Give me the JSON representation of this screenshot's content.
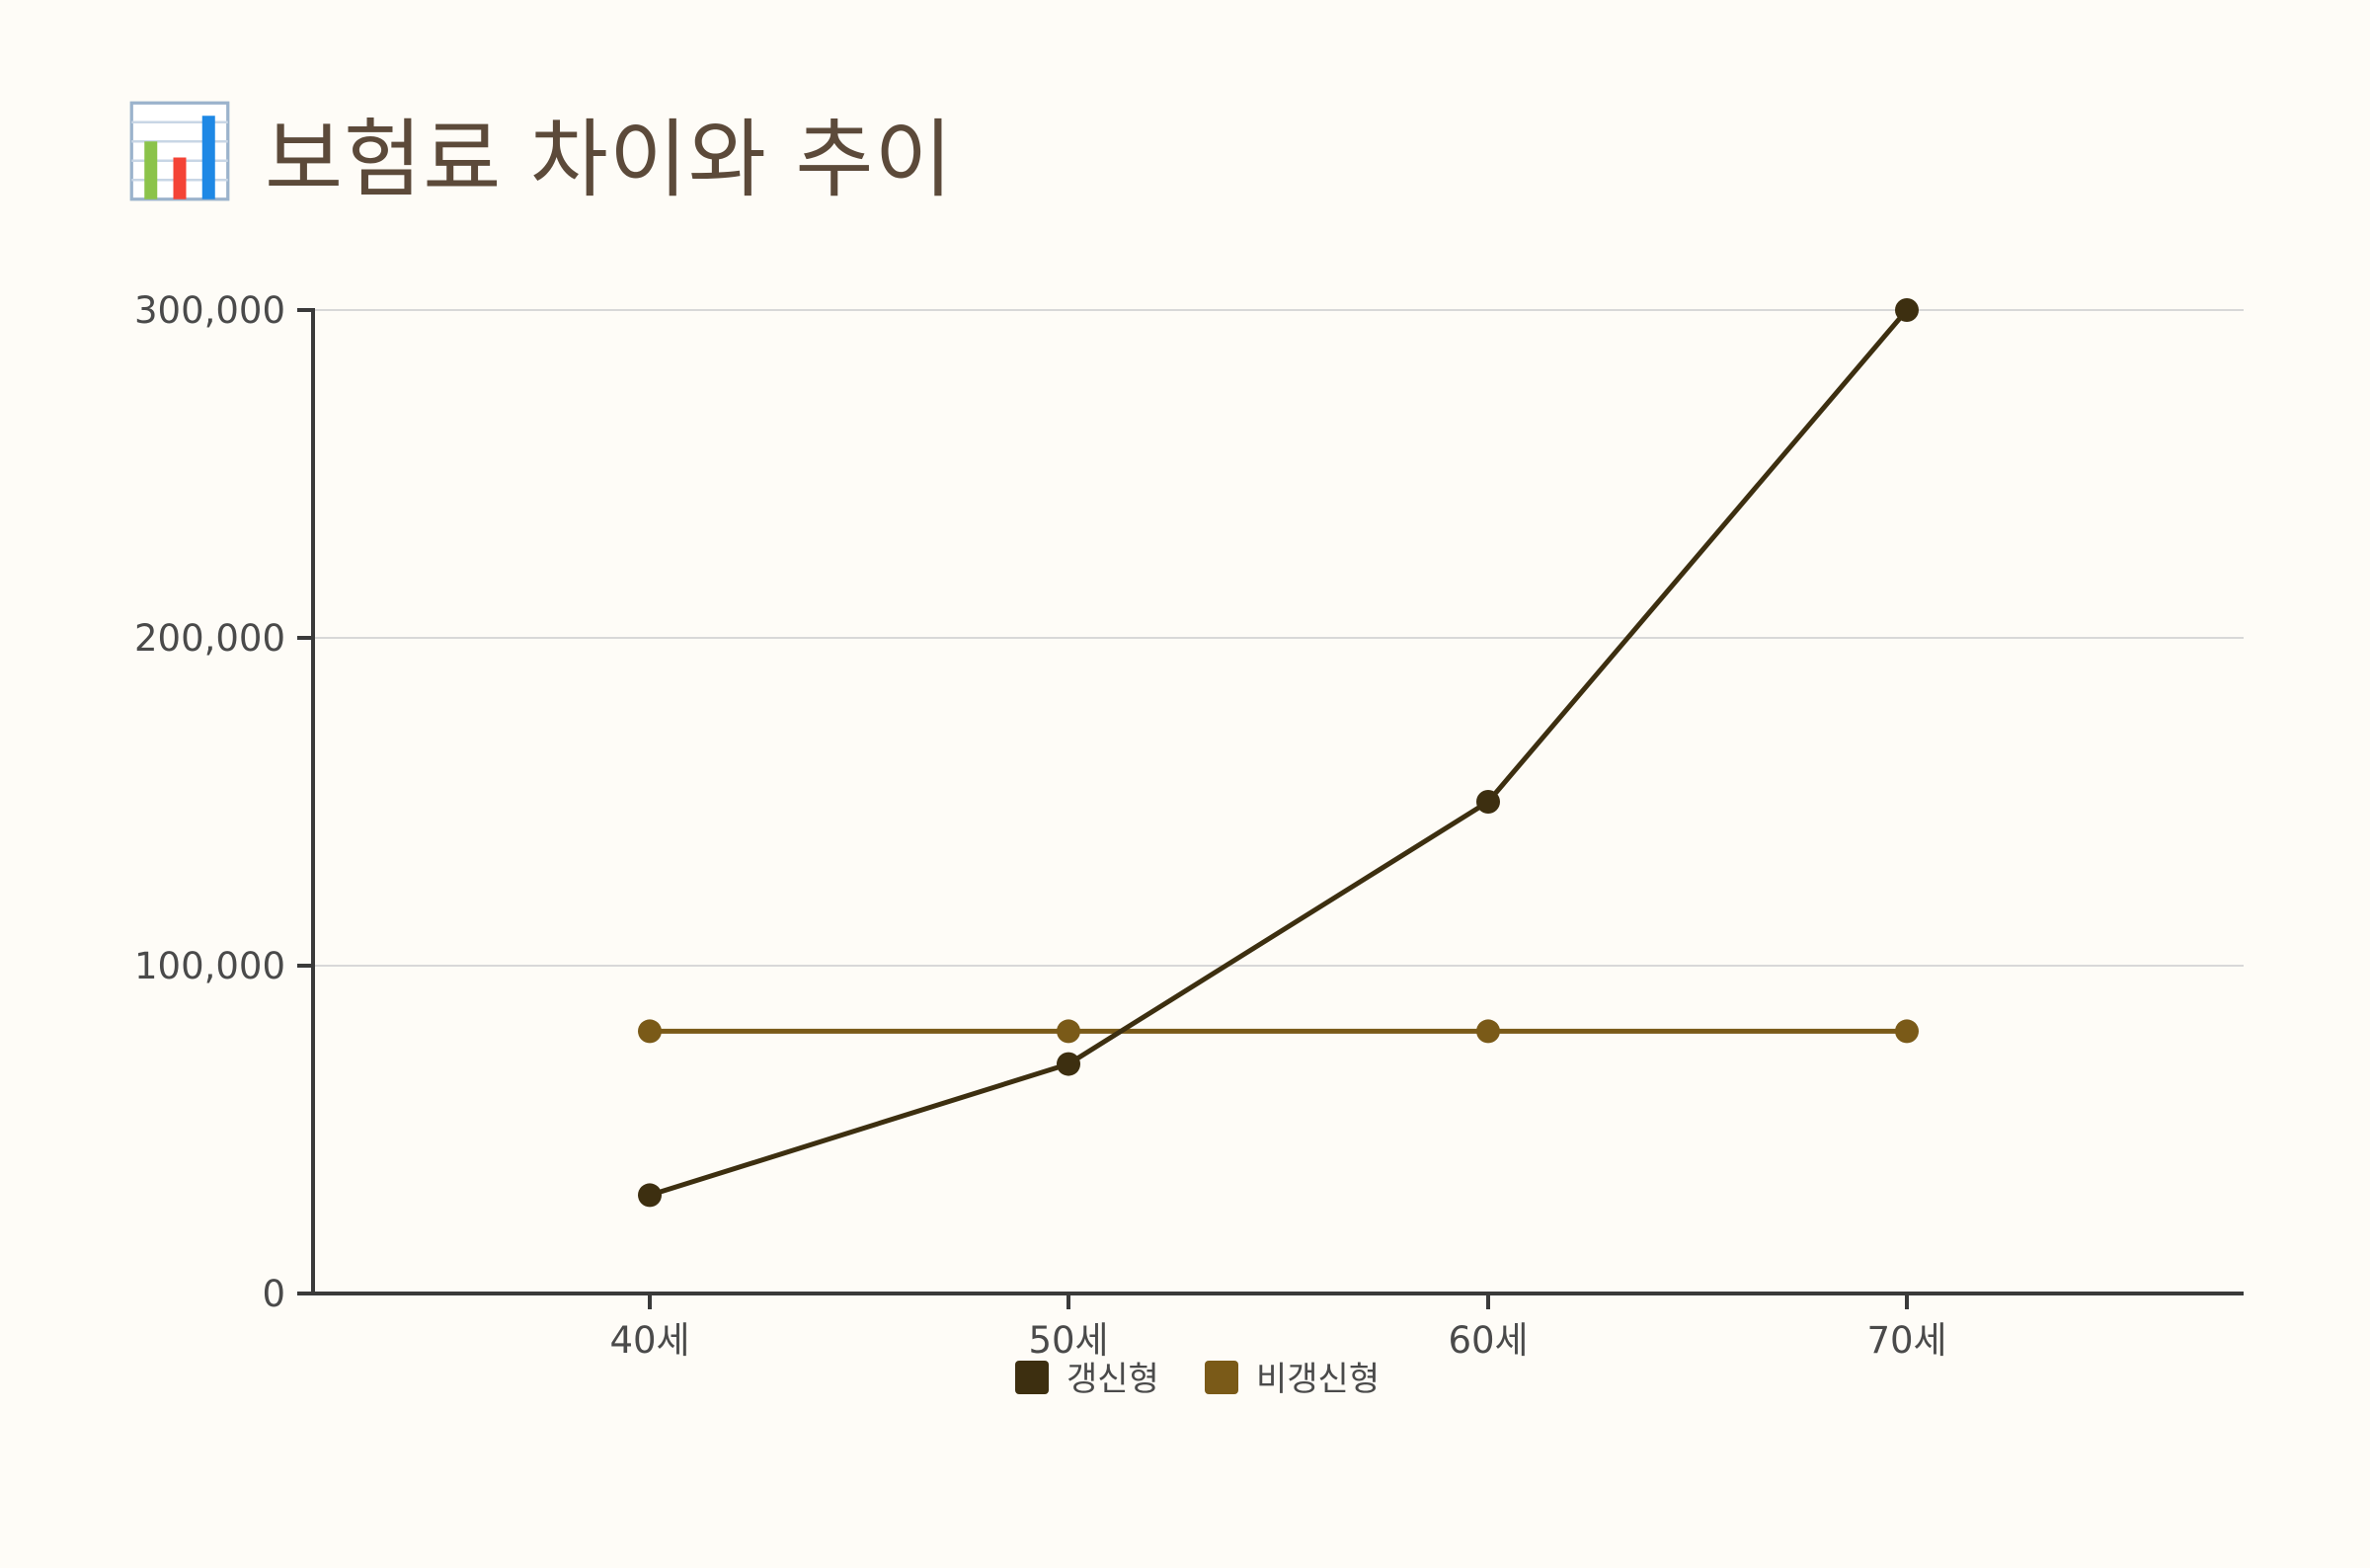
{
  "title": "보험료 차이와 추이",
  "title_icon": "bar-chart-icon",
  "colors": {
    "background": "#fefcf7",
    "title": "#5c4a3a",
    "axis": "#3a3a3a",
    "grid": "#d8d8d8",
    "series_renewal": "#3d2f10",
    "series_nonrenewal": "#7a5a18"
  },
  "chart_data": {
    "type": "line",
    "categories": [
      "40세",
      "50세",
      "60세",
      "70세"
    ],
    "series": [
      {
        "name": "갱신형",
        "values": [
          30000,
          70000,
          150000,
          300000
        ],
        "color": "#3d2f10"
      },
      {
        "name": "비갱신형",
        "values": [
          80000,
          80000,
          80000,
          80000
        ],
        "color": "#7a5a18"
      }
    ],
    "yticks": [
      0,
      100000,
      200000,
      300000
    ],
    "ytick_labels": [
      "0",
      "100,000",
      "200,000",
      "300,000"
    ],
    "ylim": [
      0,
      300000
    ],
    "grid": true,
    "legend_position": "bottom-center"
  }
}
